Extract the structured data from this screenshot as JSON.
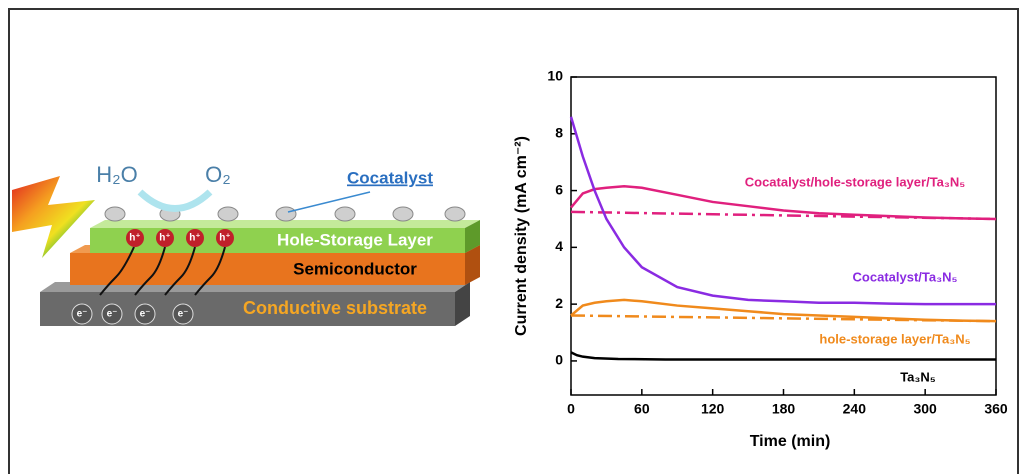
{
  "diagram": {
    "water": "H₂O",
    "oxygen": "O₂",
    "cocatalyst": "Cocatalyst",
    "hole_storage": "Hole-Storage Layer",
    "semiconductor": "Semiconductor",
    "substrate": "Conductive substrate",
    "hole": "h⁺",
    "electron": "e⁻"
  },
  "chart_data": {
    "type": "line",
    "xlabel": "Time (min)",
    "ylabel": "Current density (mA cm⁻²)",
    "xlim": [
      0,
      360
    ],
    "xticks": [
      0,
      60,
      120,
      180,
      240,
      300,
      360
    ],
    "ylim": [
      -1.2,
      10
    ],
    "yticks": [
      0,
      2,
      4,
      6,
      8,
      10
    ],
    "series": [
      {
        "name": "Cocatalyst/hole-storage layer/Ta₃N₅",
        "color": "#e0207e",
        "style": "solid",
        "x": [
          0,
          10,
          20,
          30,
          45,
          60,
          90,
          120,
          150,
          180,
          210,
          240,
          270,
          300,
          330,
          360
        ],
        "values": [
          5.4,
          5.9,
          6.05,
          6.1,
          6.15,
          6.1,
          5.85,
          5.6,
          5.45,
          5.3,
          5.2,
          5.15,
          5.1,
          5.05,
          5.02,
          5.0
        ]
      },
      {
        "color": "#e0207e",
        "style": "dash-dot",
        "x": [
          0,
          360
        ],
        "values": [
          5.25,
          5.0
        ]
      },
      {
        "name": "Cocatalyst/Ta₃N₅",
        "color": "#8a2be2",
        "style": "solid",
        "x": [
          0,
          10,
          20,
          30,
          45,
          60,
          90,
          120,
          150,
          180,
          210,
          240,
          270,
          300,
          330,
          360
        ],
        "values": [
          8.6,
          7.2,
          6.0,
          5.0,
          4.0,
          3.3,
          2.6,
          2.3,
          2.15,
          2.1,
          2.05,
          2.05,
          2.02,
          2.0,
          2.0,
          2.0
        ]
      },
      {
        "name": "hole-storage layer/Ta₃N₅",
        "color": "#f08a1c",
        "style": "solid",
        "x": [
          0,
          10,
          20,
          30,
          45,
          60,
          90,
          120,
          150,
          180,
          210,
          240,
          270,
          300,
          330,
          360
        ],
        "values": [
          1.6,
          1.95,
          2.05,
          2.1,
          2.15,
          2.1,
          1.95,
          1.85,
          1.75,
          1.65,
          1.6,
          1.55,
          1.5,
          1.45,
          1.42,
          1.4
        ]
      },
      {
        "color": "#f08a1c",
        "style": "dash-dot",
        "x": [
          0,
          360
        ],
        "values": [
          1.6,
          1.4
        ]
      },
      {
        "name": "Ta₃N₅",
        "color": "#000000",
        "style": "solid",
        "x": [
          0,
          5,
          10,
          20,
          40,
          80,
          360
        ],
        "values": [
          0.3,
          0.2,
          0.15,
          0.1,
          0.07,
          0.05,
          0.05
        ]
      }
    ]
  }
}
